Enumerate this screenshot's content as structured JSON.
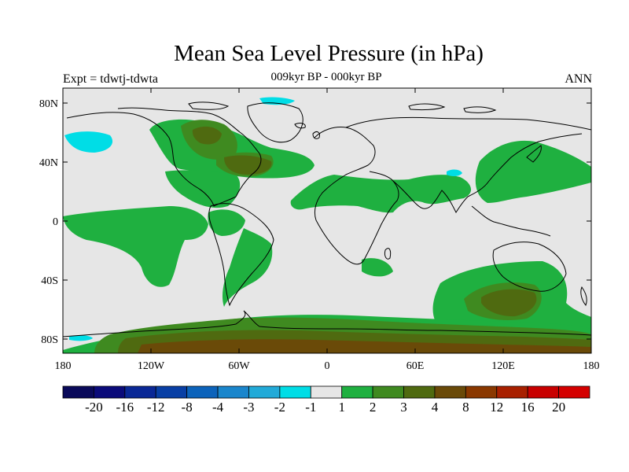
{
  "title": "Mean Sea Level Pressure (in hPa)",
  "subtitle": "009kyr BP - 000kyr BP",
  "left_label": "Expt = tdwtj-tdwta",
  "right_label": "ANN",
  "x_ticks": [
    "180",
    "120W",
    "60W",
    "0",
    "60E",
    "120E",
    "180"
  ],
  "y_ticks": [
    "80N",
    "40N",
    "0",
    "40S",
    "80S"
  ],
  "colorbar": {
    "labels": [
      "-20",
      "-16",
      "-12",
      "-8",
      "-4",
      "-3",
      "-2",
      "-1",
      "1",
      "2",
      "3",
      "4",
      "8",
      "12",
      "16",
      "20"
    ],
    "colors": [
      "#0a0a5a",
      "#0b0b7a",
      "#0a2896",
      "#083fa5",
      "#0c63bb",
      "#1a86cc",
      "#22aad8",
      "#00dde6",
      "#e6e6e6",
      "#1fb040",
      "#3f8a20",
      "#4f6a10",
      "#6a4a08",
      "#8a3800",
      "#a82000",
      "#c80000",
      "#d40000"
    ]
  },
  "colors": {
    "background": "#e6e6e6",
    "pos_1_2": "#1fb040",
    "pos_2_3": "#3f8a20",
    "pos_3_4": "#4f6a10",
    "pos_4_8": "#6a4a08",
    "neg_1_2": "#00dde6"
  }
}
